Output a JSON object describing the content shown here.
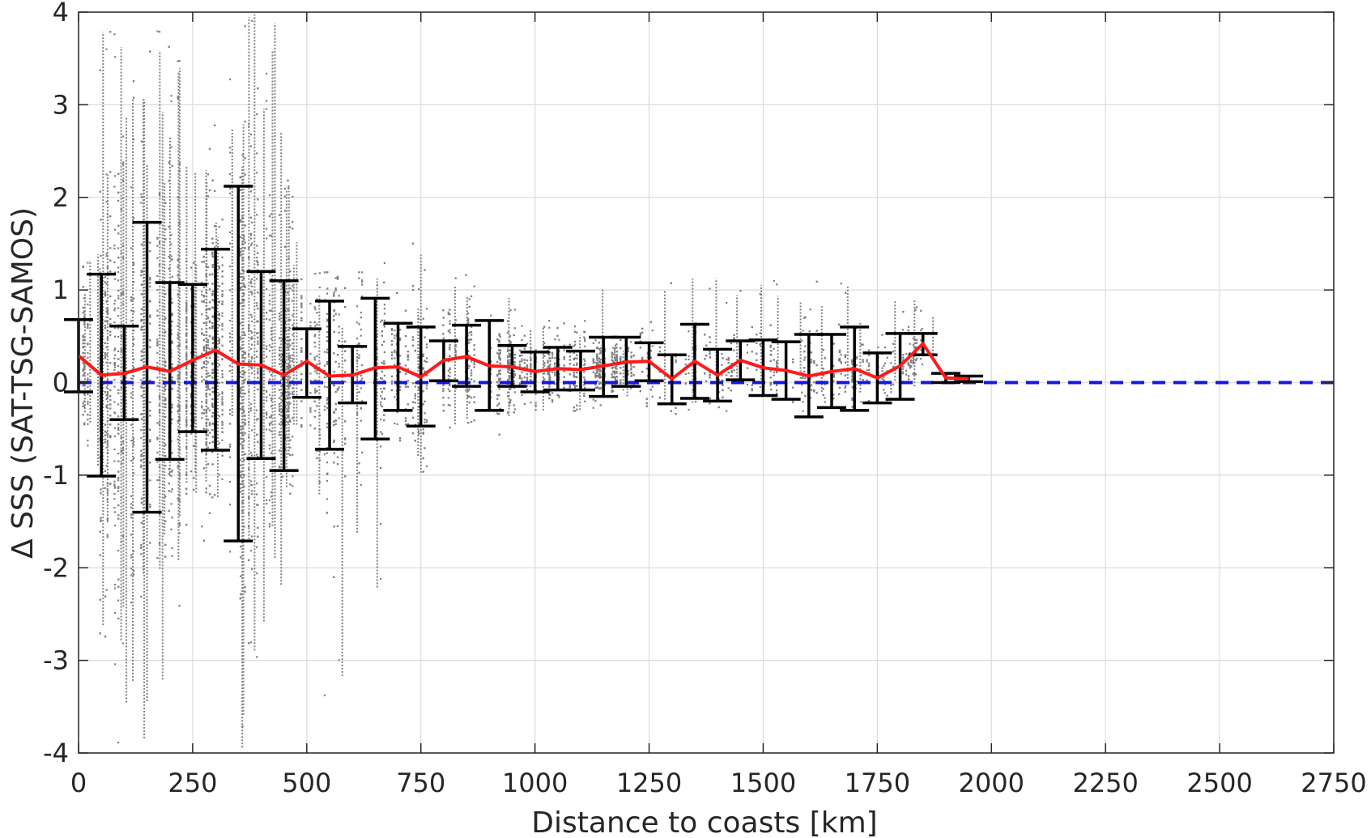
{
  "chart_data": {
    "type": "scatter",
    "title": "",
    "xlabel": "Distance to coasts [km]",
    "ylabel": "Δ SSS (SAT-TSG-SAMOS)",
    "xlim": [
      0,
      2750
    ],
    "ylim": [
      -4,
      4
    ],
    "grid": true,
    "x_ticks": [
      0,
      250,
      500,
      750,
      1000,
      1250,
      1500,
      1750,
      2000,
      2250,
      2500,
      2750
    ],
    "y_ticks": [
      -4,
      -3,
      -2,
      -1,
      0,
      1,
      2,
      3,
      4
    ],
    "x_tick_labels": [
      "0",
      "250",
      "500",
      "750",
      "1000",
      "1250",
      "1500",
      "1750",
      "2000",
      "2250",
      "2500",
      "2750"
    ],
    "y_tick_labels": [
      "-4",
      "-3",
      "-2",
      "-1",
      "0",
      "1",
      "2",
      "3",
      "4"
    ],
    "colors": {
      "scatter": "#808080",
      "mean_line": "#ff1a1a",
      "error_bars": "#000000",
      "zero_line": "#1515e0"
    },
    "zero_line": {
      "y": 0,
      "x": [
        0,
        2750
      ],
      "style": "dashed"
    },
    "mean_line": {
      "x": [
        0,
        50,
        100,
        150,
        200,
        250,
        300,
        350,
        400,
        450,
        500,
        550,
        600,
        650,
        700,
        750,
        800,
        850,
        900,
        950,
        1000,
        1050,
        1100,
        1150,
        1200,
        1250,
        1300,
        1350,
        1400,
        1450,
        1500,
        1550,
        1600,
        1650,
        1700,
        1750,
        1800,
        1850,
        1900,
        1950
      ],
      "y": [
        0.29,
        0.08,
        0.1,
        0.17,
        0.12,
        0.24,
        0.35,
        0.2,
        0.19,
        0.08,
        0.23,
        0.07,
        0.08,
        0.16,
        0.17,
        0.06,
        0.24,
        0.28,
        0.18,
        0.17,
        0.12,
        0.15,
        0.14,
        0.18,
        0.22,
        0.23,
        0.04,
        0.23,
        0.08,
        0.24,
        0.16,
        0.13,
        0.07,
        0.12,
        0.15,
        0.05,
        0.18,
        0.42,
        0.05,
        0.04
      ]
    },
    "error_bars": [
      {
        "x": 0,
        "low": -0.1,
        "high": 0.68
      },
      {
        "x": 50,
        "low": -1.01,
        "high": 1.17
      },
      {
        "x": 100,
        "low": -0.4,
        "high": 0.61
      },
      {
        "x": 150,
        "low": -1.4,
        "high": 1.73
      },
      {
        "x": 200,
        "low": -0.83,
        "high": 1.08
      },
      {
        "x": 250,
        "low": -0.53,
        "high": 1.06
      },
      {
        "x": 300,
        "low": -0.73,
        "high": 1.44
      },
      {
        "x": 350,
        "low": -1.71,
        "high": 2.12
      },
      {
        "x": 400,
        "low": -0.82,
        "high": 1.2
      },
      {
        "x": 450,
        "low": -0.95,
        "high": 1.1
      },
      {
        "x": 500,
        "low": -0.16,
        "high": 0.58
      },
      {
        "x": 550,
        "low": -0.72,
        "high": 0.88
      },
      {
        "x": 600,
        "low": -0.22,
        "high": 0.39
      },
      {
        "x": 650,
        "low": -0.61,
        "high": 0.91
      },
      {
        "x": 700,
        "low": -0.3,
        "high": 0.64
      },
      {
        "x": 750,
        "low": -0.47,
        "high": 0.6
      },
      {
        "x": 800,
        "low": 0.02,
        "high": 0.45
      },
      {
        "x": 850,
        "low": -0.04,
        "high": 0.62
      },
      {
        "x": 900,
        "low": -0.3,
        "high": 0.67
      },
      {
        "x": 950,
        "low": -0.04,
        "high": 0.4
      },
      {
        "x": 1000,
        "low": -0.1,
        "high": 0.33
      },
      {
        "x": 1050,
        "low": -0.08,
        "high": 0.38
      },
      {
        "x": 1100,
        "low": -0.08,
        "high": 0.34
      },
      {
        "x": 1150,
        "low": -0.15,
        "high": 0.49
      },
      {
        "x": 1200,
        "low": -0.04,
        "high": 0.49
      },
      {
        "x": 1250,
        "low": 0.02,
        "high": 0.43
      },
      {
        "x": 1300,
        "low": -0.23,
        "high": 0.3
      },
      {
        "x": 1350,
        "low": -0.17,
        "high": 0.63
      },
      {
        "x": 1400,
        "low": -0.2,
        "high": 0.36
      },
      {
        "x": 1450,
        "low": 0.03,
        "high": 0.45
      },
      {
        "x": 1500,
        "low": -0.14,
        "high": 0.46
      },
      {
        "x": 1550,
        "low": -0.18,
        "high": 0.44
      },
      {
        "x": 1600,
        "low": -0.37,
        "high": 0.52
      },
      {
        "x": 1650,
        "low": -0.27,
        "high": 0.52
      },
      {
        "x": 1700,
        "low": -0.3,
        "high": 0.6
      },
      {
        "x": 1750,
        "low": -0.22,
        "high": 0.32
      },
      {
        "x": 1800,
        "low": -0.18,
        "high": 0.53
      },
      {
        "x": 1850,
        "low": 0.3,
        "high": 0.53
      },
      {
        "x": 1900,
        "low": 0.0,
        "high": 0.1
      },
      {
        "x": 1950,
        "low": 0.01,
        "high": 0.07
      }
    ],
    "scatter_envelope": {
      "x": [
        0,
        50,
        100,
        150,
        200,
        250,
        300,
        350,
        400,
        450,
        500,
        550,
        600,
        650,
        700,
        750,
        800,
        850,
        900,
        950,
        1000,
        1050,
        1100,
        1150,
        1200,
        1250,
        1300,
        1350,
        1400,
        1450,
        1500,
        1550,
        1600,
        1650,
        1700,
        1750,
        1800,
        1850
      ],
      "low": [
        -1.0,
        -2.8,
        -3.9,
        -3.5,
        -2.4,
        -1.8,
        -1.5,
        -4.0,
        -3.2,
        -1.2,
        -1.5,
        -3.8,
        -2.8,
        -2.3,
        -0.9,
        -1.5,
        -0.5,
        -0.7,
        -0.6,
        -0.4,
        -0.4,
        -0.3,
        -0.3,
        -0.3,
        -0.2,
        -0.4,
        -0.5,
        -0.3,
        -0.3,
        -0.1,
        -0.2,
        -0.2,
        -0.3,
        -0.2,
        -0.3,
        -0.2,
        -0.1,
        0.1
      ],
      "high": [
        1.6,
        4.0,
        3.9,
        4.0,
        4.0,
        2.3,
        2.8,
        4.0,
        4.0,
        2.2,
        1.4,
        1.2,
        1.2,
        1.3,
        1.0,
        1.6,
        1.2,
        1.6,
        1.0,
        0.8,
        0.8,
        0.8,
        1.1,
        0.6,
        0.6,
        1.0,
        1.2,
        1.2,
        1.1,
        1.1,
        1.2,
        1.2,
        1.2,
        1.1,
        1.0,
        1.0,
        1.0,
        0.9
      ]
    }
  }
}
